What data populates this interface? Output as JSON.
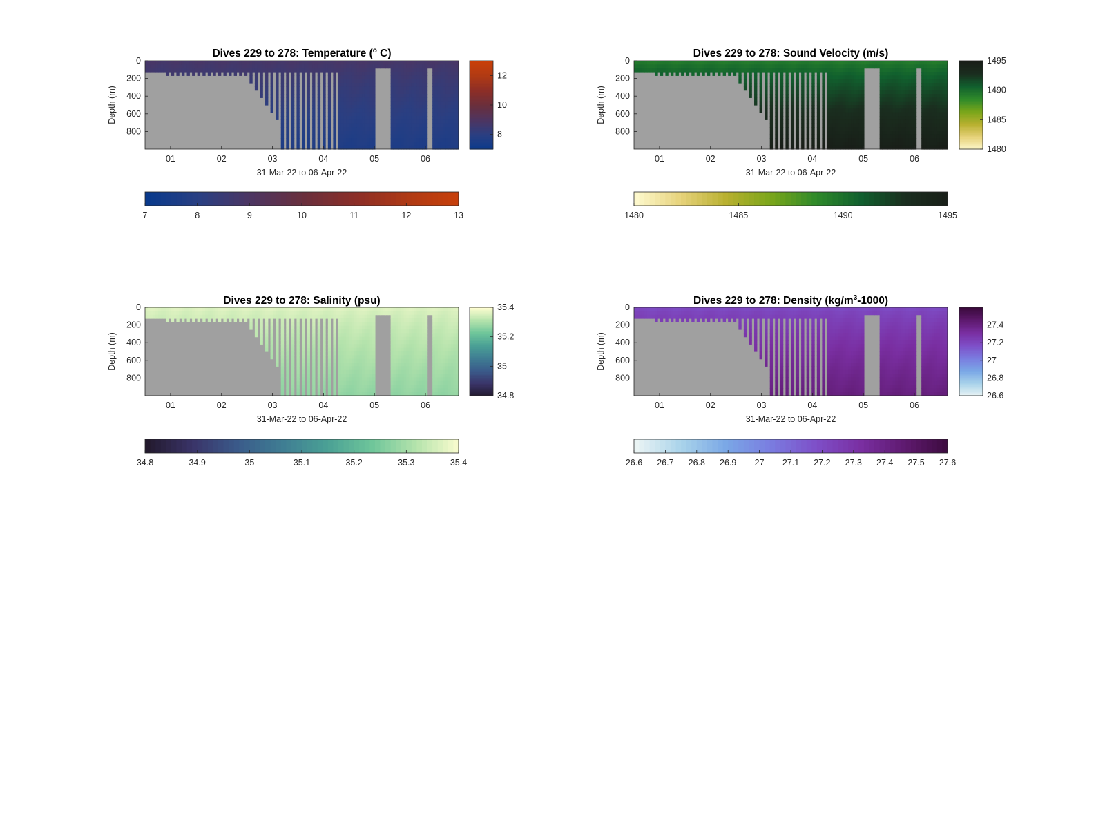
{
  "chart_data": [
    {
      "type": "heatmap",
      "title_prefix": "Dives 229 to 278: Temperature (",
      "title_sup": "o",
      "title_suffix": " C)",
      "xlabel": "31-Mar-22 to 06-Apr-22",
      "ylabel": "Depth (m)",
      "x_ticks": [
        "01",
        "02",
        "03",
        "04",
        "05",
        "06"
      ],
      "x_range_days": [
        -0.5,
        5.65
      ],
      "y_ticks": [
        "0",
        "200",
        "400",
        "600",
        "800"
      ],
      "ylim": [
        0,
        1000
      ],
      "colorbar": {
        "range": [
          7,
          13
        ],
        "ticks": [
          "8",
          "10",
          "12"
        ],
        "values": [
          8,
          10,
          12
        ]
      },
      "horizontal_colorbar": {
        "range": [
          7,
          13
        ],
        "ticks": [
          "7",
          "8",
          "9",
          "10",
          "11",
          "12",
          "13"
        ],
        "values": [
          7,
          8,
          9,
          10,
          11,
          12,
          13
        ]
      },
      "colormap": [
        "#0a3a8c",
        "#2a3f82",
        "#4d3561",
        "#6a2f3c",
        "#8c2e27",
        "#b03a14",
        "#c8400a"
      ],
      "missing_color": "#a0a0a0",
      "surface_value": 8.8,
      "deep_value": 7.6
    },
    {
      "type": "heatmap",
      "title_prefix": "Dives 229 to 278: Sound Velocity (m/s)",
      "title_sup": "",
      "title_suffix": "",
      "xlabel": "31-Mar-22 to 06-Apr-22",
      "ylabel": "Depth (m)",
      "x_ticks": [
        "01",
        "02",
        "03",
        "04",
        "05",
        "06"
      ],
      "x_range_days": [
        -0.5,
        5.65
      ],
      "y_ticks": [
        "0",
        "200",
        "400",
        "600",
        "800"
      ],
      "ylim": [
        0,
        1000
      ],
      "colorbar": {
        "range": [
          1480,
          1495
        ],
        "ticks": [
          "1480",
          "1485",
          "1490",
          "1495"
        ],
        "values": [
          1480,
          1485,
          1490,
          1495
        ]
      },
      "horizontal_colorbar": {
        "range": [
          1480,
          1495
        ],
        "ticks": [
          "1480",
          "1485",
          "1490",
          "1495"
        ],
        "values": [
          1480,
          1485,
          1490,
          1495
        ]
      },
      "colormap": [
        "#fdf8cc",
        "#e6d27a",
        "#b8b030",
        "#7aa61a",
        "#2f8a2a",
        "#11602e",
        "#1a2e1f",
        "#191e18"
      ],
      "missing_color": "#a0a0a0",
      "surface_value": 1489.5,
      "deep_value": 1495
    },
    {
      "type": "heatmap",
      "title_prefix": "Dives 229 to 278: Salinity (psu)",
      "title_sup": "",
      "title_suffix": "",
      "xlabel": "31-Mar-22 to 06-Apr-22",
      "ylabel": "Depth (m)",
      "x_ticks": [
        "01",
        "02",
        "03",
        "04",
        "05",
        "06"
      ],
      "x_range_days": [
        -0.5,
        5.65
      ],
      "y_ticks": [
        "0",
        "200",
        "400",
        "600",
        "800"
      ],
      "ylim": [
        0,
        1000
      ],
      "colorbar": {
        "range": [
          34.8,
          35.4
        ],
        "ticks": [
          "34.8",
          "35",
          "35.2",
          "35.4"
        ],
        "values": [
          34.8,
          35.0,
          35.2,
          35.4
        ]
      },
      "horizontal_colorbar": {
        "range": [
          34.8,
          35.4
        ],
        "ticks": [
          "34.8",
          "34.9",
          "35",
          "35.1",
          "35.2",
          "35.3",
          "35.4"
        ],
        "values": [
          34.8,
          34.9,
          35.0,
          35.1,
          35.2,
          35.3,
          35.4
        ]
      },
      "colormap": [
        "#231a2e",
        "#3a3468",
        "#3a5a8a",
        "#3f7d93",
        "#4aa095",
        "#6ec59a",
        "#b5e3ac",
        "#fdfdd0"
      ],
      "missing_color": "#a0a0a0",
      "surface_value": 35.36,
      "deep_value": 35.27
    },
    {
      "type": "heatmap",
      "title_prefix": "Dives 229 to 278: Density (kg/m",
      "title_sup": "3",
      "title_suffix": "-1000)",
      "xlabel": "31-Mar-22 to 06-Apr-22",
      "ylabel": "Depth (m)",
      "x_ticks": [
        "01",
        "02",
        "03",
        "04",
        "05",
        "06"
      ],
      "x_range_days": [
        -0.5,
        5.65
      ],
      "y_ticks": [
        "0",
        "200",
        "400",
        "600",
        "800"
      ],
      "ylim": [
        0,
        1000
      ],
      "colorbar": {
        "range": [
          26.6,
          27.6
        ],
        "ticks": [
          "26.6",
          "26.8",
          "27",
          "27.2",
          "27.4"
        ],
        "values": [
          26.6,
          26.8,
          27.0,
          27.2,
          27.4
        ]
      },
      "horizontal_colorbar": {
        "range": [
          26.6,
          27.6
        ],
        "ticks": [
          "26.6",
          "26.7",
          "26.8",
          "26.9",
          "27",
          "27.1",
          "27.2",
          "27.3",
          "27.4",
          "27.5",
          "27.6"
        ],
        "values": [
          26.6,
          26.7,
          26.8,
          26.9,
          27.0,
          27.1,
          27.2,
          27.3,
          27.4,
          27.5,
          27.6
        ]
      },
      "colormap": [
        "#eaf4f4",
        "#a9d3ea",
        "#7aa7e6",
        "#7a7ce0",
        "#7e4fc8",
        "#7a2fa2",
        "#5e1a6e",
        "#3b0a3c"
      ],
      "missing_color": "#a0a0a0",
      "surface_value": 27.2,
      "deep_value": 27.42
    }
  ]
}
